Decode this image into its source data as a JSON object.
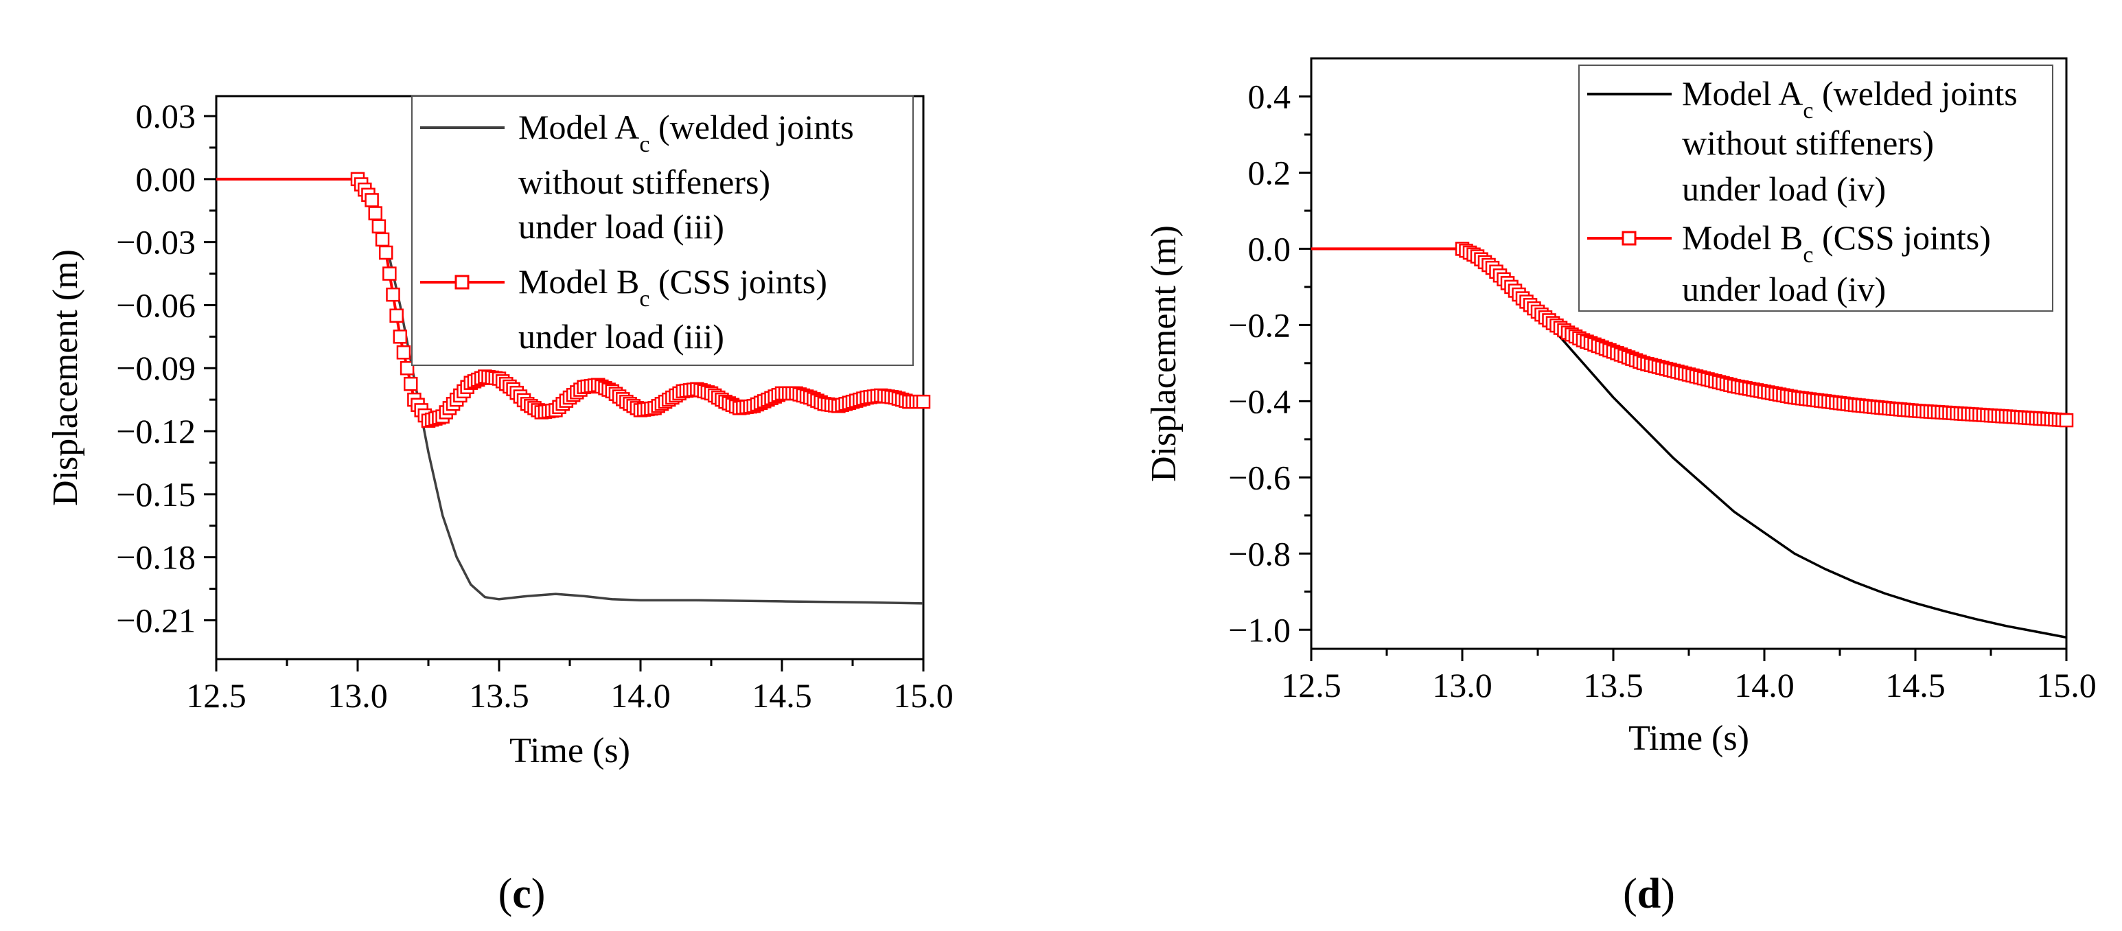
{
  "chart_data": [
    {
      "type": "line",
      "panel_label": "c",
      "xlabel": "Time (s)",
      "ylabel": "Displacement (m)",
      "xlim": [
        12.5,
        15.0
      ],
      "ylim": [
        -0.2285,
        0.0395
      ],
      "xticks": [
        {
          "v": 12.5,
          "label": "12.5"
        },
        {
          "v": 13.0,
          "label": "13.0"
        },
        {
          "v": 13.5,
          "label": "13.5"
        },
        {
          "v": 14.0,
          "label": "14.0"
        },
        {
          "v": 14.5,
          "label": "14.5"
        },
        {
          "v": 15.0,
          "label": "15.0"
        }
      ],
      "yticks": [
        {
          "v": 0.03,
          "label": "0.03"
        },
        {
          "v": 0.0,
          "label": "0.00"
        },
        {
          "v": -0.03,
          "label": "−0.03"
        },
        {
          "v": -0.06,
          "label": "−0.06"
        },
        {
          "v": -0.09,
          "label": "−0.09"
        },
        {
          "v": -0.12,
          "label": "−0.12"
        },
        {
          "v": -0.15,
          "label": "−0.15"
        },
        {
          "v": -0.18,
          "label": "−0.18"
        },
        {
          "v": -0.21,
          "label": "−0.21"
        }
      ],
      "legend": {
        "position": "top-right",
        "entries": [
          {
            "model": "Model A",
            "sub": "c",
            "lines": [
              " (welded joints",
              "without stiffeners)",
              "under load (iii)"
            ]
          },
          {
            "model": "Model B",
            "sub": "c",
            "lines": [
              " (CSS joints)",
              "under load (iii)"
            ]
          }
        ]
      },
      "series": [
        {
          "name": "Model Ac (welded joints without stiffeners) under load (iii)",
          "color": "#404040",
          "marker": "none",
          "x": [
            12.5,
            13.0,
            13.05,
            13.1,
            13.15,
            13.2,
            13.25,
            13.3,
            13.35,
            13.4,
            13.45,
            13.5,
            13.6,
            13.7,
            13.8,
            13.9,
            14.0,
            14.2,
            14.5,
            14.8,
            15.0
          ],
          "y": [
            0.0,
            0.0,
            -0.01,
            -0.03,
            -0.06,
            -0.095,
            -0.13,
            -0.16,
            -0.18,
            -0.193,
            -0.199,
            -0.2,
            -0.1985,
            -0.1975,
            -0.1985,
            -0.2,
            -0.2005,
            -0.2005,
            -0.201,
            -0.2015,
            -0.202
          ]
        },
        {
          "name": "Model Bc (CSS joints) under load (iii)",
          "color": "#ff0000",
          "marker": "square-open",
          "x": [
            12.5,
            13.0,
            13.05,
            13.1,
            13.15,
            13.2,
            13.25,
            13.3,
            13.35,
            13.4,
            13.45,
            13.5,
            13.55,
            13.6,
            13.65,
            13.7,
            13.75,
            13.8,
            13.85,
            13.9,
            13.95,
            14.0,
            14.05,
            14.1,
            14.15,
            14.2,
            14.25,
            14.3,
            14.35,
            14.4,
            14.45,
            14.5,
            14.55,
            14.6,
            14.65,
            14.7,
            14.75,
            14.8,
            14.85,
            14.9,
            14.95,
            15.0
          ],
          "y": [
            0.0,
            0.0,
            -0.01,
            -0.035,
            -0.075,
            -0.105,
            -0.115,
            -0.113,
            -0.105,
            -0.097,
            -0.094,
            -0.095,
            -0.1,
            -0.107,
            -0.111,
            -0.11,
            -0.104,
            -0.099,
            -0.098,
            -0.101,
            -0.106,
            -0.11,
            -0.109,
            -0.105,
            -0.101,
            -0.1,
            -0.102,
            -0.106,
            -0.109,
            -0.108,
            -0.105,
            -0.102,
            -0.102,
            -0.104,
            -0.107,
            -0.108,
            -0.106,
            -0.104,
            -0.103,
            -0.104,
            -0.106,
            -0.106
          ]
        }
      ]
    },
    {
      "type": "line",
      "panel_label": "d",
      "xlabel": "Time (s)",
      "ylabel": "Displacement (m)",
      "xlim": [
        12.5,
        15.0
      ],
      "ylim": [
        -1.05,
        0.5
      ],
      "xticks": [
        {
          "v": 12.5,
          "label": "12.5"
        },
        {
          "v": 13.0,
          "label": "13.0"
        },
        {
          "v": 13.5,
          "label": "13.5"
        },
        {
          "v": 14.0,
          "label": "14.0"
        },
        {
          "v": 14.5,
          "label": "14.5"
        },
        {
          "v": 15.0,
          "label": "15.0"
        }
      ],
      "yticks": [
        {
          "v": 0.4,
          "label": "0.4"
        },
        {
          "v": 0.2,
          "label": "0.2"
        },
        {
          "v": 0.0,
          "label": "0.0"
        },
        {
          "v": -0.2,
          "label": "−0.2"
        },
        {
          "v": -0.4,
          "label": "−0.4"
        },
        {
          "v": -0.6,
          "label": "−0.6"
        },
        {
          "v": -0.8,
          "label": "−0.8"
        },
        {
          "v": -1.0,
          "label": "−1.0"
        }
      ],
      "legend": {
        "position": "top-right",
        "entries": [
          {
            "model": "Model A",
            "sub": "c",
            "lines": [
              " (welded joints",
              "without stiffeners)",
              "under load (iv)"
            ]
          },
          {
            "model": "Model B",
            "sub": "c",
            "lines": [
              " (CSS joints)",
              "under load (iv)"
            ]
          }
        ]
      },
      "series": [
        {
          "name": "Model Ac (welded joints without stiffeners) under load (iv)",
          "color": "#000000",
          "marker": "none",
          "x": [
            12.5,
            13.0,
            13.05,
            13.1,
            13.15,
            13.2,
            13.3,
            13.4,
            13.5,
            13.6,
            13.7,
            13.8,
            13.9,
            14.0,
            14.1,
            14.2,
            14.3,
            14.4,
            14.5,
            14.6,
            14.7,
            14.8,
            14.9,
            15.0
          ],
          "y": [
            0.0,
            0.0,
            -0.02,
            -0.05,
            -0.09,
            -0.13,
            -0.21,
            -0.3,
            -0.39,
            -0.47,
            -0.55,
            -0.62,
            -0.69,
            -0.745,
            -0.8,
            -0.84,
            -0.875,
            -0.905,
            -0.93,
            -0.952,
            -0.972,
            -0.99,
            -1.005,
            -1.02
          ]
        },
        {
          "name": "Model Bc (CSS joints) under load (iv)",
          "color": "#ff0000",
          "marker": "square-open",
          "x": [
            12.5,
            13.0,
            13.05,
            13.1,
            13.15,
            13.2,
            13.25,
            13.3,
            13.35,
            13.4,
            13.45,
            13.5,
            13.6,
            13.7,
            13.8,
            13.9,
            14.0,
            14.1,
            14.2,
            14.3,
            14.4,
            14.5,
            14.6,
            14.7,
            14.8,
            14.9,
            15.0
          ],
          "y": [
            0.0,
            0.0,
            -0.02,
            -0.05,
            -0.09,
            -0.13,
            -0.165,
            -0.195,
            -0.22,
            -0.24,
            -0.255,
            -0.27,
            -0.3,
            -0.32,
            -0.34,
            -0.36,
            -0.375,
            -0.39,
            -0.4,
            -0.41,
            -0.418,
            -0.425,
            -0.43,
            -0.435,
            -0.44,
            -0.445,
            -0.45
          ]
        }
      ]
    }
  ]
}
